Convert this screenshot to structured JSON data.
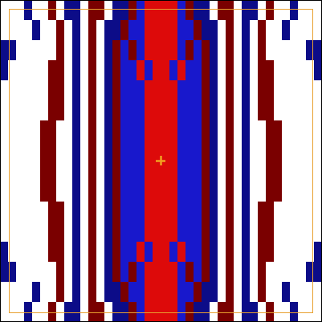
{
  "chart_data": {
    "type": "heatmap",
    "tick_labels": false,
    "levels": [
      -2,
      -1,
      0,
      1,
      2
    ],
    "colors": [
      "#0c0c88",
      "#1818cc",
      "#ffffff",
      "#dd0a0a",
      "#7a0000"
    ],
    "z": [
      [
        0,
        0,
        0,
        -2,
        0,
        0,
        2,
        0,
        -2,
        -2,
        0,
        2,
        2,
        0,
        -2,
        -2,
        2,
        -1,
        1,
        1,
        1,
        1,
        -1,
        2,
        -2,
        -2,
        0,
        2,
        2,
        0,
        -2,
        -2,
        0,
        2,
        0,
        0,
        -2,
        0,
        0,
        0
      ],
      [
        0,
        0,
        0,
        0,
        -2,
        0,
        0,
        2,
        0,
        -2,
        0,
        2,
        0,
        -2,
        -2,
        2,
        -1,
        -1,
        1,
        1,
        1,
        1,
        -1,
        -1,
        2,
        -2,
        -2,
        0,
        2,
        0,
        -2,
        0,
        2,
        0,
        0,
        -2,
        0,
        0,
        0,
        0
      ],
      [
        -2,
        -2,
        0,
        0,
        0,
        0,
        0,
        2,
        0,
        -2,
        0,
        2,
        0,
        -2,
        2,
        -1,
        2,
        -1,
        1,
        1,
        1,
        1,
        -1,
        2,
        -1,
        2,
        -2,
        0,
        2,
        0,
        -2,
        0,
        2,
        0,
        0,
        0,
        0,
        0,
        -2,
        -2
      ],
      [
        -2,
        0,
        0,
        0,
        0,
        0,
        2,
        2,
        0,
        -2,
        0,
        2,
        0,
        -2,
        2,
        -1,
        -1,
        1,
        -1,
        1,
        1,
        -1,
        1,
        -1,
        -1,
        2,
        -2,
        0,
        2,
        0,
        -2,
        0,
        2,
        2,
        0,
        0,
        0,
        0,
        0,
        -2
      ],
      [
        0,
        0,
        0,
        0,
        0,
        0,
        2,
        2,
        0,
        -2,
        0,
        2,
        0,
        -2,
        2,
        -1,
        -1,
        -1,
        1,
        1,
        1,
        1,
        -1,
        -1,
        -1,
        2,
        -2,
        0,
        2,
        0,
        -2,
        0,
        2,
        2,
        0,
        0,
        0,
        0,
        0,
        0
      ],
      [
        0,
        0,
        0,
        0,
        0,
        0,
        2,
        2,
        0,
        -2,
        0,
        2,
        0,
        -2,
        2,
        -1,
        -1,
        -1,
        1,
        1,
        1,
        1,
        -1,
        -1,
        -1,
        2,
        -2,
        0,
        2,
        0,
        -2,
        0,
        2,
        2,
        0,
        0,
        0,
        0,
        0,
        0
      ],
      [
        0,
        0,
        0,
        0,
        0,
        2,
        2,
        0,
        0,
        -2,
        0,
        2,
        0,
        -2,
        2,
        -1,
        -1,
        -1,
        1,
        1,
        1,
        1,
        -1,
        -1,
        -1,
        2,
        -2,
        0,
        2,
        0,
        -2,
        0,
        0,
        2,
        2,
        0,
        0,
        0,
        0,
        0
      ],
      [
        0,
        0,
        0,
        0,
        0,
        2,
        2,
        0,
        0,
        -2,
        0,
        2,
        0,
        -2,
        2,
        -1,
        -1,
        -1,
        1,
        1,
        1,
        1,
        -1,
        -1,
        -1,
        2,
        -2,
        0,
        2,
        0,
        -2,
        0,
        0,
        2,
        2,
        0,
        0,
        0,
        0,
        0
      ],
      [
        0,
        0,
        0,
        0,
        0,
        2,
        2,
        0,
        0,
        -2,
        0,
        2,
        0,
        -2,
        2,
        -1,
        -1,
        -1,
        1,
        1,
        1,
        1,
        -1,
        -1,
        -1,
        2,
        -2,
        0,
        2,
        0,
        -2,
        0,
        0,
        2,
        2,
        0,
        0,
        0,
        0,
        0
      ],
      [
        0,
        0,
        0,
        0,
        0,
        2,
        2,
        0,
        0,
        -2,
        0,
        2,
        0,
        -2,
        2,
        -1,
        -1,
        -1,
        1,
        1,
        1,
        1,
        -1,
        -1,
        -1,
        2,
        -2,
        0,
        2,
        0,
        -2,
        0,
        0,
        2,
        2,
        0,
        0,
        0,
        0,
        0
      ],
      [
        0,
        0,
        0,
        0,
        0,
        0,
        2,
        2,
        0,
        -2,
        0,
        2,
        0,
        -2,
        2,
        -1,
        -1,
        -1,
        1,
        1,
        1,
        1,
        -1,
        -1,
        -1,
        2,
        -2,
        0,
        2,
        0,
        -2,
        0,
        2,
        2,
        0,
        0,
        0,
        0,
        0,
        0
      ],
      [
        0,
        0,
        0,
        0,
        0,
        0,
        2,
        2,
        0,
        -2,
        0,
        2,
        0,
        -2,
        2,
        -1,
        -1,
        -1,
        1,
        1,
        1,
        1,
        -1,
        -1,
        -1,
        2,
        -2,
        0,
        2,
        0,
        -2,
        0,
        2,
        2,
        0,
        0,
        0,
        0,
        0,
        0
      ],
      [
        -2,
        0,
        0,
        0,
        0,
        0,
        2,
        2,
        0,
        -2,
        0,
        2,
        0,
        -2,
        2,
        -1,
        -1,
        1,
        -1,
        1,
        1,
        -1,
        1,
        -1,
        -1,
        2,
        -2,
        0,
        2,
        0,
        -2,
        0,
        2,
        2,
        0,
        0,
        0,
        0,
        0,
        -2
      ],
      [
        -2,
        -2,
        0,
        0,
        0,
        0,
        0,
        2,
        0,
        -2,
        0,
        2,
        0,
        -2,
        2,
        -1,
        2,
        -1,
        1,
        1,
        1,
        1,
        -1,
        2,
        -1,
        2,
        -2,
        0,
        2,
        0,
        -2,
        0,
        2,
        0,
        0,
        0,
        0,
        0,
        -2,
        -2
      ],
      [
        0,
        0,
        0,
        0,
        -2,
        0,
        0,
        2,
        0,
        -2,
        0,
        2,
        0,
        -2,
        -2,
        2,
        -1,
        -1,
        1,
        1,
        1,
        1,
        -1,
        -1,
        2,
        -2,
        -2,
        0,
        2,
        0,
        -2,
        0,
        2,
        0,
        0,
        -2,
        0,
        0,
        0,
        0
      ],
      [
        0,
        0,
        0,
        -2,
        0,
        0,
        2,
        0,
        -2,
        -2,
        0,
        2,
        2,
        0,
        -2,
        -2,
        2,
        -1,
        1,
        1,
        1,
        1,
        -1,
        2,
        -2,
        -2,
        0,
        2,
        2,
        0,
        -2,
        -2,
        0,
        2,
        0,
        0,
        -2,
        0,
        0,
        0
      ]
    ]
  }
}
